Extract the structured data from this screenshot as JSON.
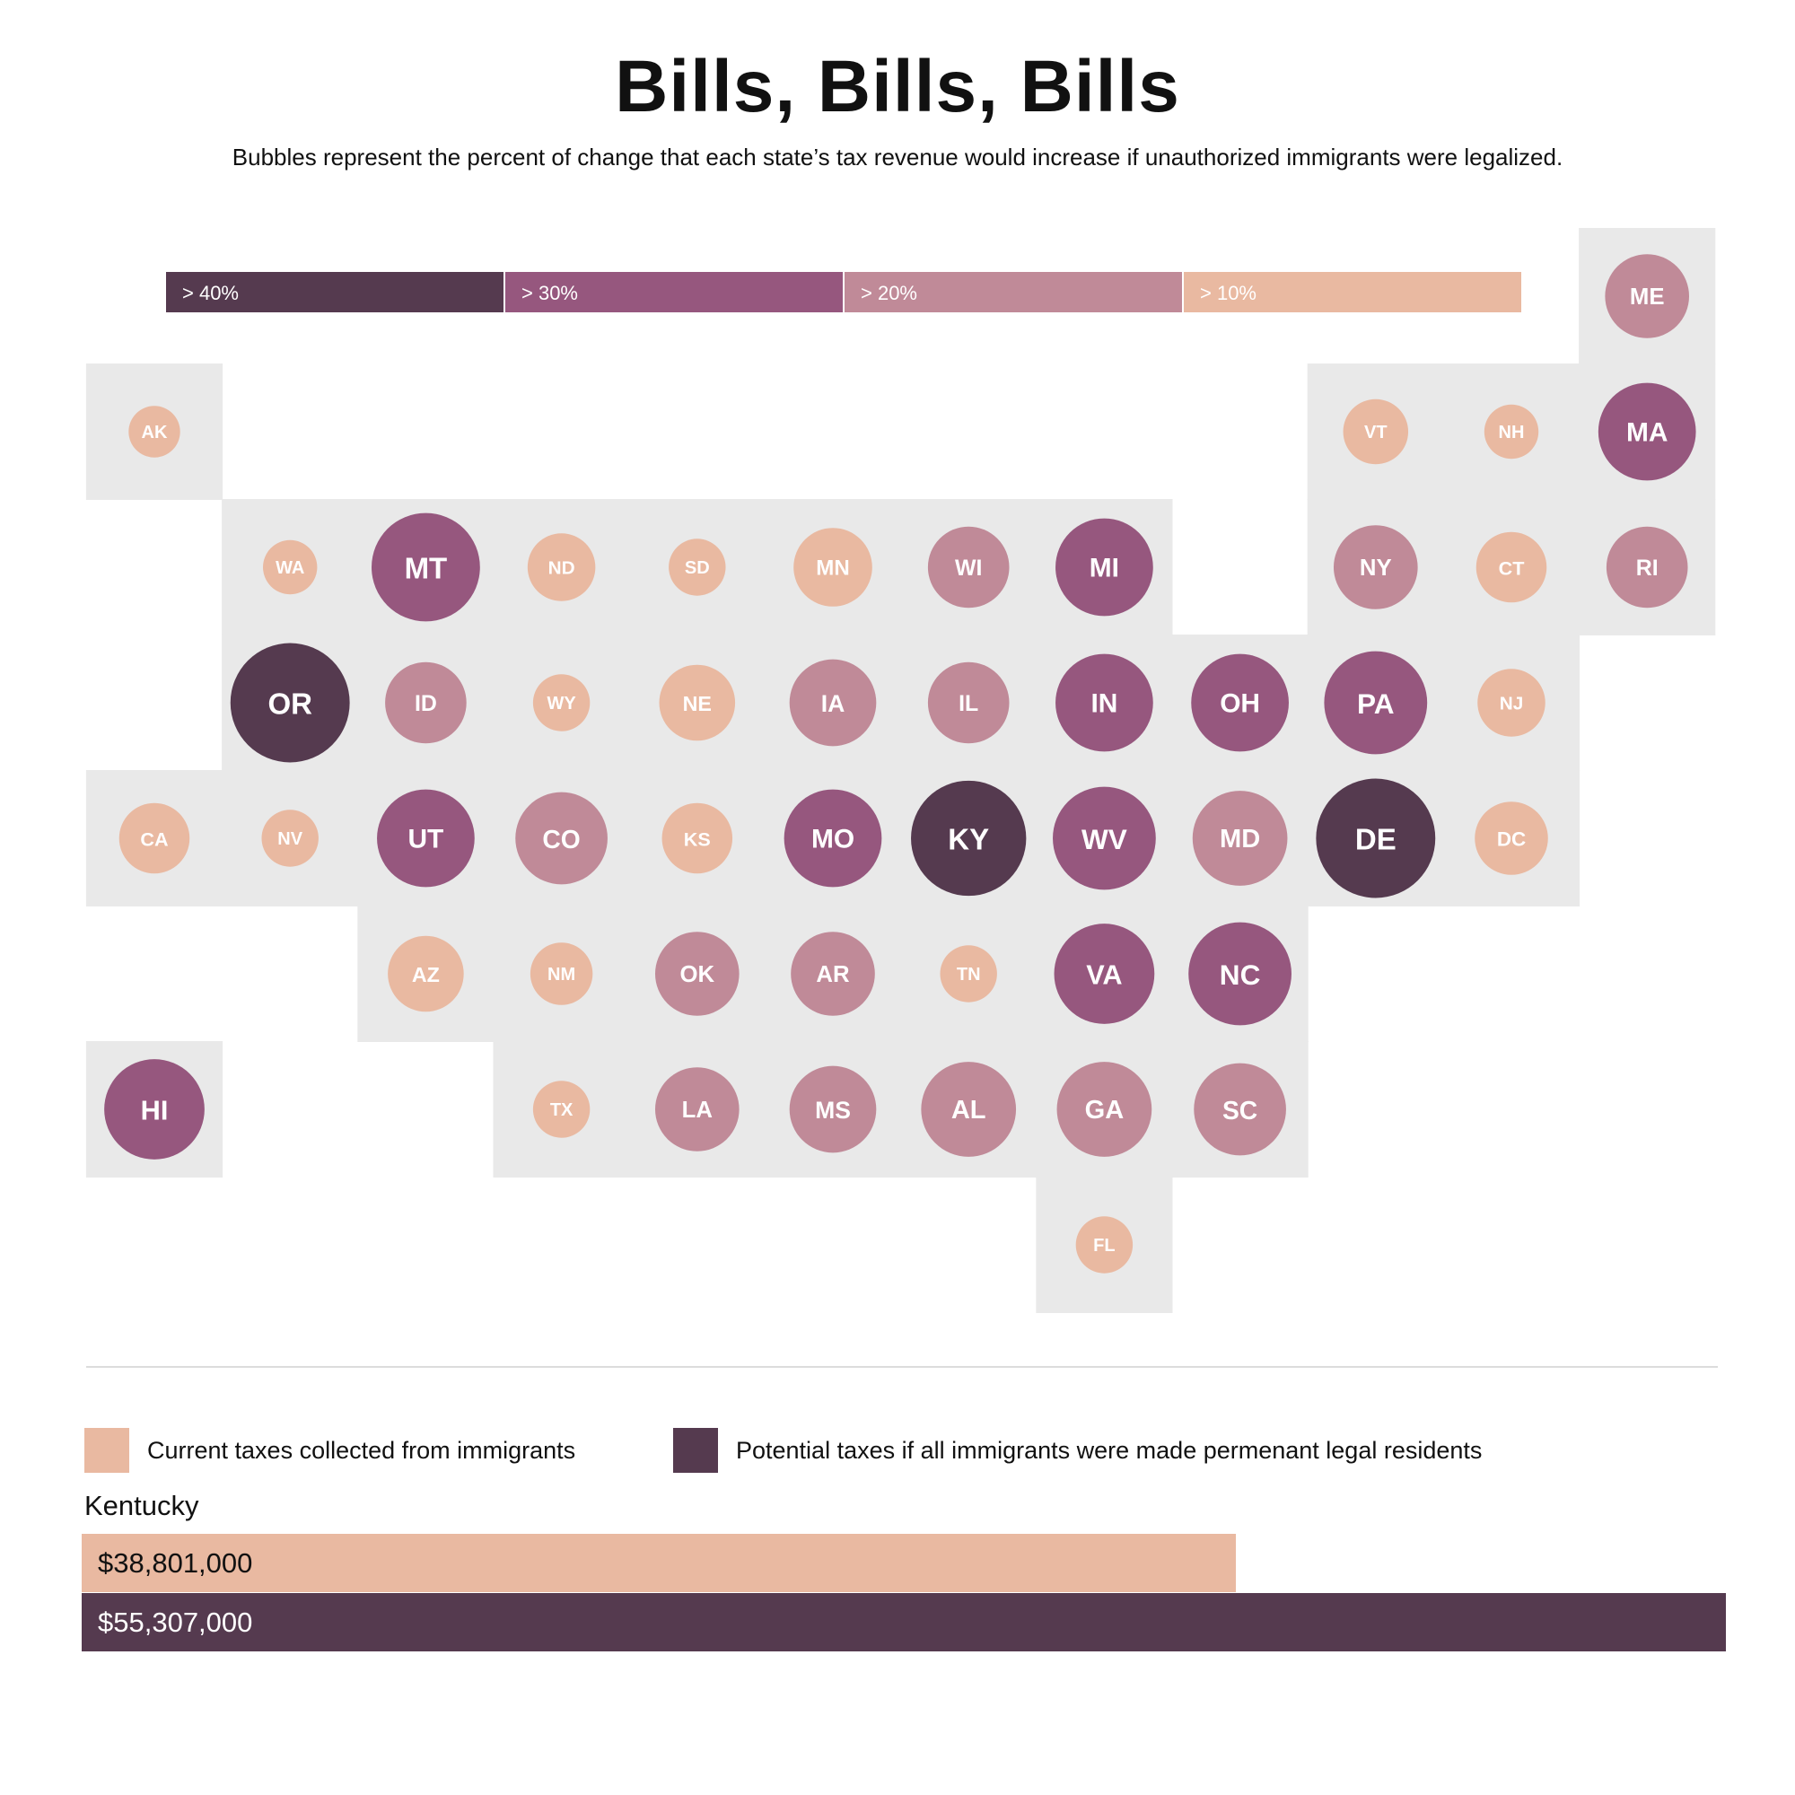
{
  "title": "Bills, Bills, Bills",
  "subtitle": "Bubbles represent the percent of change that each state’s tax revenue would increase if unauthorized immigrants were legalized.",
  "colors": {
    "gt40": "#553a4f",
    "gt30": "#96577e",
    "gt20": "#c08a98",
    "gt10": "#e9b9a1",
    "tile_bg": "#e9e9e9",
    "text_dark": "#111111"
  },
  "chart_data": [
    {
      "type": "tile-bubble-map",
      "title": "Bills, Bills, Bills",
      "subtitle": "Bubbles represent the percent of change that each state’s tax revenue would increase if unauthorized immigrants were legalized.",
      "legend": [
        {
          "label": "> 40%",
          "category": "gt40"
        },
        {
          "label": "> 30%",
          "category": "gt30"
        },
        {
          "label": "> 20%",
          "category": "gt20"
        },
        {
          "label": "> 10%",
          "category": "gt10"
        }
      ],
      "states": [
        {
          "abbr": "ME",
          "col": 11,
          "row": 0,
          "category": "gt20",
          "size": 0.62
        },
        {
          "abbr": "AK",
          "col": 0,
          "row": 1,
          "category": "gt10",
          "size": 0.38
        },
        {
          "abbr": "VT",
          "col": 9,
          "row": 1,
          "category": "gt10",
          "size": 0.48
        },
        {
          "abbr": "NH",
          "col": 10,
          "row": 1,
          "category": "gt10",
          "size": 0.4
        },
        {
          "abbr": "MA",
          "col": 11,
          "row": 1,
          "category": "gt30",
          "size": 0.72
        },
        {
          "abbr": "WA",
          "col": 1,
          "row": 2,
          "category": "gt10",
          "size": 0.4
        },
        {
          "abbr": "MT",
          "col": 2,
          "row": 2,
          "category": "gt30",
          "size": 0.8
        },
        {
          "abbr": "ND",
          "col": 3,
          "row": 2,
          "category": "gt10",
          "size": 0.5
        },
        {
          "abbr": "SD",
          "col": 4,
          "row": 2,
          "category": "gt10",
          "size": 0.42
        },
        {
          "abbr": "MN",
          "col": 5,
          "row": 2,
          "category": "gt10",
          "size": 0.58
        },
        {
          "abbr": "WI",
          "col": 6,
          "row": 2,
          "category": "gt20",
          "size": 0.6
        },
        {
          "abbr": "MI",
          "col": 7,
          "row": 2,
          "category": "gt30",
          "size": 0.72
        },
        {
          "abbr": "NY",
          "col": 9,
          "row": 2,
          "category": "gt20",
          "size": 0.62
        },
        {
          "abbr": "CT",
          "col": 10,
          "row": 2,
          "category": "gt10",
          "size": 0.52
        },
        {
          "abbr": "RI",
          "col": 11,
          "row": 2,
          "category": "gt20",
          "size": 0.6
        },
        {
          "abbr": "OR",
          "col": 1,
          "row": 3,
          "category": "gt40",
          "size": 0.88
        },
        {
          "abbr": "ID",
          "col": 2,
          "row": 3,
          "category": "gt20",
          "size": 0.6
        },
        {
          "abbr": "WY",
          "col": 3,
          "row": 3,
          "category": "gt10",
          "size": 0.42
        },
        {
          "abbr": "NE",
          "col": 4,
          "row": 3,
          "category": "gt10",
          "size": 0.56
        },
        {
          "abbr": "IA",
          "col": 5,
          "row": 3,
          "category": "gt20",
          "size": 0.64
        },
        {
          "abbr": "IL",
          "col": 6,
          "row": 3,
          "category": "gt20",
          "size": 0.6
        },
        {
          "abbr": "IN",
          "col": 7,
          "row": 3,
          "category": "gt30",
          "size": 0.72
        },
        {
          "abbr": "OH",
          "col": 8,
          "row": 3,
          "category": "gt30",
          "size": 0.72
        },
        {
          "abbr": "PA",
          "col": 9,
          "row": 3,
          "category": "gt30",
          "size": 0.76
        },
        {
          "abbr": "NJ",
          "col": 10,
          "row": 3,
          "category": "gt10",
          "size": 0.5
        },
        {
          "abbr": "CA",
          "col": 0,
          "row": 4,
          "category": "gt10",
          "size": 0.52
        },
        {
          "abbr": "NV",
          "col": 1,
          "row": 4,
          "category": "gt10",
          "size": 0.42
        },
        {
          "abbr": "UT",
          "col": 2,
          "row": 4,
          "category": "gt30",
          "size": 0.72
        },
        {
          "abbr": "CO",
          "col": 3,
          "row": 4,
          "category": "gt20",
          "size": 0.68
        },
        {
          "abbr": "KS",
          "col": 4,
          "row": 4,
          "category": "gt10",
          "size": 0.52
        },
        {
          "abbr": "MO",
          "col": 5,
          "row": 4,
          "category": "gt30",
          "size": 0.72
        },
        {
          "abbr": "KY",
          "col": 6,
          "row": 4,
          "category": "gt40",
          "size": 0.85
        },
        {
          "abbr": "WV",
          "col": 7,
          "row": 4,
          "category": "gt30",
          "size": 0.76
        },
        {
          "abbr": "MD",
          "col": 8,
          "row": 4,
          "category": "gt20",
          "size": 0.7
        },
        {
          "abbr": "DE",
          "col": 9,
          "row": 4,
          "category": "gt40",
          "size": 0.88
        },
        {
          "abbr": "DC",
          "col": 10,
          "row": 4,
          "category": "gt10",
          "size": 0.54
        },
        {
          "abbr": "AZ",
          "col": 2,
          "row": 5,
          "category": "gt10",
          "size": 0.56
        },
        {
          "abbr": "NM",
          "col": 3,
          "row": 5,
          "category": "gt10",
          "size": 0.46
        },
        {
          "abbr": "OK",
          "col": 4,
          "row": 5,
          "category": "gt20",
          "size": 0.62
        },
        {
          "abbr": "AR",
          "col": 5,
          "row": 5,
          "category": "gt20",
          "size": 0.62
        },
        {
          "abbr": "TN",
          "col": 6,
          "row": 5,
          "category": "gt10",
          "size": 0.42
        },
        {
          "abbr": "VA",
          "col": 7,
          "row": 5,
          "category": "gt30",
          "size": 0.74
        },
        {
          "abbr": "NC",
          "col": 8,
          "row": 5,
          "category": "gt30",
          "size": 0.76
        },
        {
          "abbr": "HI",
          "col": 0,
          "row": 6,
          "category": "gt30",
          "size": 0.74
        },
        {
          "abbr": "TX",
          "col": 3,
          "row": 6,
          "category": "gt10",
          "size": 0.42
        },
        {
          "abbr": "LA",
          "col": 4,
          "row": 6,
          "category": "gt20",
          "size": 0.62
        },
        {
          "abbr": "MS",
          "col": 5,
          "row": 6,
          "category": "gt20",
          "size": 0.64
        },
        {
          "abbr": "AL",
          "col": 6,
          "row": 6,
          "category": "gt20",
          "size": 0.7
        },
        {
          "abbr": "GA",
          "col": 7,
          "row": 6,
          "category": "gt20",
          "size": 0.7
        },
        {
          "abbr": "SC",
          "col": 8,
          "row": 6,
          "category": "gt20",
          "size": 0.68
        },
        {
          "abbr": "FL",
          "col": 7,
          "row": 7,
          "category": "gt10",
          "size": 0.42
        }
      ]
    },
    {
      "type": "bar",
      "title": "Kentucky",
      "orientation": "horizontal",
      "legend": [
        {
          "label": "Current taxes collected from immigrants",
          "color": "#e9b9a1"
        },
        {
          "label": "Potential taxes if all immigrants were made permenant legal residents",
          "color": "#553a4f"
        }
      ],
      "categories": [
        "Current",
        "Potential"
      ],
      "values": [
        38801000,
        55307000
      ],
      "value_labels": [
        "$38,801,000",
        "$55,307,000"
      ],
      "xlim": [
        0,
        55307000
      ]
    }
  ],
  "bottom": {
    "legend_current": "Current taxes collected from immigrants",
    "legend_potential": "Potential taxes if all immigrants were made permenant legal residents",
    "state_name": "Kentucky",
    "current_label": "$38,801,000",
    "potential_label": "$55,307,000"
  }
}
